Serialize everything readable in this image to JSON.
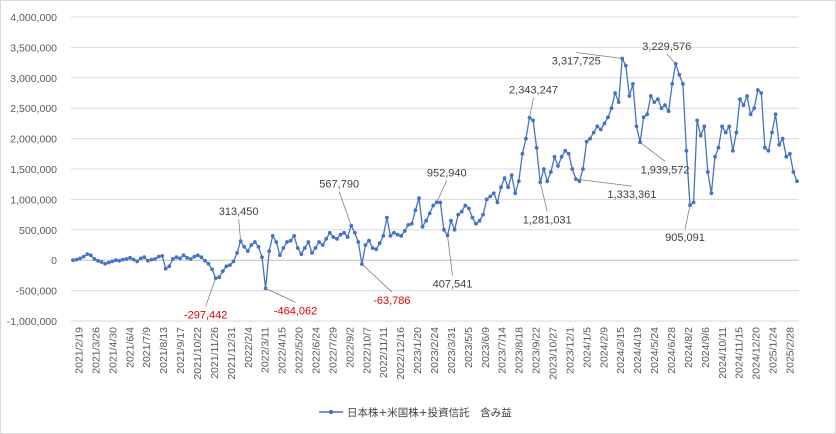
{
  "chart_data": {
    "type": "line",
    "title": "",
    "xlabel": "",
    "ylabel": "",
    "ylim": [
      -1000000,
      4000000
    ],
    "y_ticks": [
      -1000000,
      -500000,
      0,
      500000,
      1000000,
      1500000,
      2000000,
      2500000,
      3000000,
      3500000,
      4000000
    ],
    "y_tick_labels": [
      "-1,000,000",
      "-500,000",
      "0",
      "500,000",
      "1,000,000",
      "1,500,000",
      "2,000,000",
      "2,500,000",
      "3,000,000",
      "3,500,000",
      "4,000,000"
    ],
    "x_tick_labels": [
      "2021/2/19",
      "2021/3/26",
      "2021/4/30",
      "2021/6/4",
      "2021/7/9",
      "2021/8/13",
      "2021/9/17",
      "2021/10/22",
      "2021/11/26",
      "2021/12/31",
      "2022/2/4",
      "2022/3/11",
      "2022/4/15",
      "2022/5/20",
      "2022/6/24",
      "2022/7/29",
      "2022/9/2",
      "2022/10/7",
      "2022/11/11",
      "2022/12/16",
      "2023/1/20",
      "2023/2/24",
      "2023/3/31",
      "2023/5/5",
      "2023/6/9",
      "2023/7/14",
      "2023/8/18",
      "2023/9/22",
      "2023/10/27",
      "2023/12/1",
      "2024/1/5",
      "2024/2/9",
      "2024/3/15",
      "2024/4/19",
      "2024/5/24",
      "2024/6/28",
      "2024/8/2",
      "2024/9/6",
      "2024/10/11",
      "2024/11/15",
      "2024/12/20",
      "2025/1/24",
      "2025/2/28"
    ],
    "legend": {
      "position": "bottom",
      "label": "日本株+米国株+投資信託　含み益"
    },
    "grid": "horizontal",
    "colors": {
      "series": "#4472c4",
      "gridline": "#d9d9d9",
      "negative_label": "#e00000",
      "label": "#404040"
    },
    "series": [
      {
        "name": "日本株+米国株+投資信託　含み益",
        "values": [
          0,
          10000,
          30000,
          60000,
          100000,
          80000,
          20000,
          -10000,
          -30000,
          -60000,
          -40000,
          -20000,
          0,
          -10000,
          10000,
          20000,
          40000,
          10000,
          -20000,
          30000,
          50000,
          -10000,
          10000,
          20000,
          60000,
          70000,
          -140000,
          -100000,
          20000,
          50000,
          30000,
          80000,
          40000,
          20000,
          60000,
          80000,
          50000,
          -10000,
          -60000,
          -150000,
          -297442,
          -280000,
          -180000,
          -100000,
          -80000,
          -20000,
          120000,
          313450,
          220000,
          150000,
          250000,
          300000,
          220000,
          50000,
          -464062,
          150000,
          400000,
          300000,
          80000,
          200000,
          300000,
          320000,
          400000,
          200000,
          100000,
          200000,
          300000,
          120000,
          200000,
          300000,
          250000,
          350000,
          450000,
          380000,
          350000,
          420000,
          450000,
          380000,
          567790,
          450000,
          300000,
          -63786,
          250000,
          320000,
          200000,
          180000,
          280000,
          400000,
          700000,
          400000,
          450000,
          420000,
          400000,
          480000,
          580000,
          600000,
          820000,
          1020000,
          550000,
          650000,
          770000,
          900000,
          952940,
          950000,
          500000,
          407541,
          650000,
          500000,
          750000,
          800000,
          900000,
          850000,
          700000,
          600000,
          650000,
          750000,
          1000000,
          1050000,
          1100000,
          950000,
          1200000,
          1350000,
          1200000,
          1400000,
          1100000,
          1300000,
          1750000,
          2000000,
          2343247,
          2300000,
          1850000,
          1281031,
          1500000,
          1300000,
          1450000,
          1700000,
          1550000,
          1700000,
          1800000,
          1750000,
          1500000,
          1333361,
          1300000,
          1500000,
          1950000,
          2000000,
          2100000,
          2200000,
          2150000,
          2250000,
          2350000,
          2500000,
          2750000,
          2600000,
          3317725,
          3200000,
          2700000,
          2900000,
          2200000,
          1939572,
          2350000,
          2400000,
          2700000,
          2600000,
          2650000,
          2500000,
          2550000,
          2450000,
          2900000,
          3229576,
          3050000,
          2900000,
          1800000,
          905091,
          950000,
          2300000,
          2050000,
          2200000,
          1450000,
          1100000,
          1700000,
          1850000,
          2200000,
          2100000,
          2200000,
          1800000,
          2100000,
          2650000,
          2550000,
          2700000,
          2400000,
          2500000,
          2800000,
          2750000,
          1850000,
          1800000,
          2100000,
          2400000,
          1900000,
          2000000,
          1700000,
          1750000,
          1450000,
          1300000
        ]
      }
    ],
    "annotations": [
      {
        "text": "313,450",
        "value": 313450,
        "negative": false
      },
      {
        "text": "-297,442",
        "value": -297442,
        "negative": true
      },
      {
        "text": "-464,062",
        "value": -464062,
        "negative": true
      },
      {
        "text": "567,790",
        "value": 567790,
        "negative": false
      },
      {
        "text": "-63,786",
        "value": -63786,
        "negative": true
      },
      {
        "text": "952,940",
        "value": 952940,
        "negative": false
      },
      {
        "text": "407,541",
        "value": 407541,
        "negative": false
      },
      {
        "text": "2,343,247",
        "value": 2343247,
        "negative": false
      },
      {
        "text": "1,281,031",
        "value": 1281031,
        "negative": false
      },
      {
        "text": "1,333,361",
        "value": 1333361,
        "negative": false
      },
      {
        "text": "3,317,725",
        "value": 3317725,
        "negative": false
      },
      {
        "text": "1,939,572",
        "value": 1939572,
        "negative": false
      },
      {
        "text": "3,229,576",
        "value": 3229576,
        "negative": false
      },
      {
        "text": "905,091",
        "value": 905091,
        "negative": false
      }
    ]
  }
}
